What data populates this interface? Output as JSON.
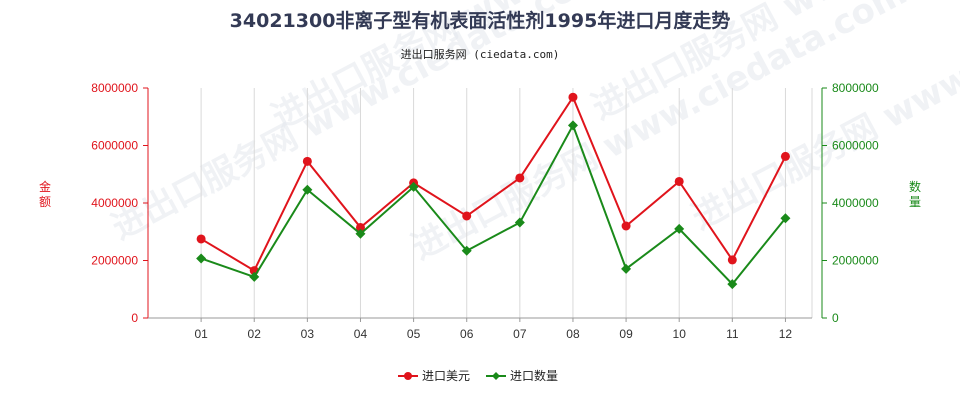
{
  "chart_data": {
    "type": "line",
    "title": "34021300非离子型有机表面活性剂1995年进口月度走势",
    "subtitle": "进出口服务网 (ciedata.com)",
    "watermark": "进出口服务网 www.ciedata.com",
    "categories": [
      "01",
      "02",
      "03",
      "04",
      "05",
      "06",
      "07",
      "08",
      "09",
      "10",
      "11",
      "12"
    ],
    "series": [
      {
        "name": "进口美元",
        "color": "#e0141c",
        "axis": "left",
        "values": [
          2750000,
          1650000,
          5450000,
          3150000,
          4700000,
          3550000,
          4870000,
          7680000,
          3200000,
          4750000,
          2020000,
          5620000
        ]
      },
      {
        "name": "进口数量",
        "color": "#1a8a1a",
        "axis": "right",
        "values": [
          2070000,
          1430000,
          4460000,
          2930000,
          4560000,
          2340000,
          3320000,
          6700000,
          1710000,
          3100000,
          1180000,
          3470000
        ]
      }
    ],
    "ylabel_left": "金额",
    "ylabel_right": "数量",
    "ylim_left": [
      0,
      8000000
    ],
    "ylim_right": [
      0,
      8000000
    ],
    "yticks_left": [
      "0",
      "2000000",
      "4000000",
      "6000000",
      "8000000"
    ],
    "yticks_right": [
      "0",
      "2000000",
      "4000000",
      "6000000",
      "8000000"
    ],
    "grid": "vertical",
    "legend_position": "bottom-center",
    "axis_colors": {
      "left": "#e0141c",
      "right": "#1a8a1a"
    }
  }
}
